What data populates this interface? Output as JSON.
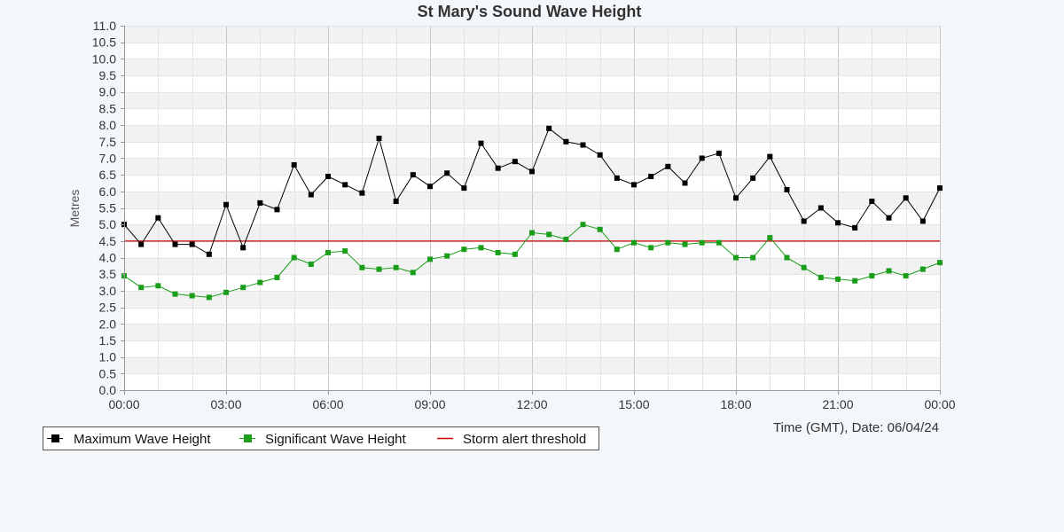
{
  "chart_data": {
    "type": "line",
    "title": "St Mary's Sound Wave Height",
    "ylabel": "Metres",
    "xlabel": "Time (GMT), Date: 06/04/24",
    "ylim": [
      0,
      11
    ],
    "y_ticks": [
      "0.0",
      "0.5",
      "1.0",
      "1.5",
      "2.0",
      "2.5",
      "3.0",
      "3.5",
      "4.0",
      "4.5",
      "5.0",
      "5.5",
      "6.0",
      "6.5",
      "7.0",
      "7.5",
      "8.0",
      "8.5",
      "9.0",
      "9.5",
      "10.0",
      "10.5",
      "11.0"
    ],
    "x_range_hours": [
      0,
      24
    ],
    "x_ticks": [
      "00:00",
      "03:00",
      "06:00",
      "09:00",
      "12:00",
      "15:00",
      "18:00",
      "21:00",
      "00:00"
    ],
    "grid": true,
    "legend_position": "bottom-left",
    "x_hours": [
      0,
      0.5,
      1,
      1.5,
      2,
      2.5,
      3,
      3.5,
      4,
      4.5,
      5,
      5.5,
      6,
      6.5,
      7,
      7.5,
      8,
      8.5,
      9,
      9.5,
      10,
      10.5,
      11,
      11.5,
      12,
      12.5,
      13,
      13.5,
      14,
      14.5,
      15,
      15.5,
      16,
      16.5,
      17,
      17.5,
      18,
      18.5,
      19,
      19.5,
      20,
      20.5,
      21,
      21.5,
      22,
      22.5,
      23,
      23.5,
      24
    ],
    "series": [
      {
        "name": "Maximum Wave Height",
        "color": "#000000",
        "marker": "square",
        "values": [
          5.0,
          4.4,
          5.2,
          4.4,
          4.4,
          4.1,
          5.6,
          4.3,
          5.65,
          5.45,
          6.8,
          5.9,
          6.45,
          6.2,
          5.95,
          7.6,
          5.7,
          6.5,
          6.15,
          6.55,
          6.1,
          7.45,
          6.7,
          6.9,
          6.6,
          7.9,
          7.5,
          7.4,
          7.1,
          6.4,
          6.2,
          6.45,
          6.75,
          6.25,
          7.0,
          7.15,
          5.8,
          6.4,
          7.05,
          6.05,
          5.1,
          5.5,
          5.05,
          4.9,
          5.7,
          5.2,
          5.8,
          5.1,
          6.1
        ]
      },
      {
        "name": "Significant Wave Height",
        "color": "#1a9e1a",
        "marker": "square",
        "values": [
          3.45,
          3.1,
          3.15,
          2.9,
          2.85,
          2.8,
          2.95,
          3.1,
          3.25,
          3.4,
          4.0,
          3.8,
          4.15,
          4.2,
          3.7,
          3.65,
          3.7,
          3.55,
          3.95,
          4.05,
          4.25,
          4.3,
          4.15,
          4.1,
          4.75,
          4.7,
          4.55,
          5.0,
          4.85,
          4.25,
          4.45,
          4.3,
          4.45,
          4.4,
          4.45,
          4.45,
          4.0,
          4.0,
          4.6,
          4.0,
          3.7,
          3.4,
          3.35,
          3.3,
          3.45,
          3.6,
          3.45,
          3.65,
          3.85
        ]
      },
      {
        "name": "Storm alert threshold",
        "color": "#cc0000",
        "marker": "none",
        "values": [
          4.5
        ]
      }
    ]
  }
}
